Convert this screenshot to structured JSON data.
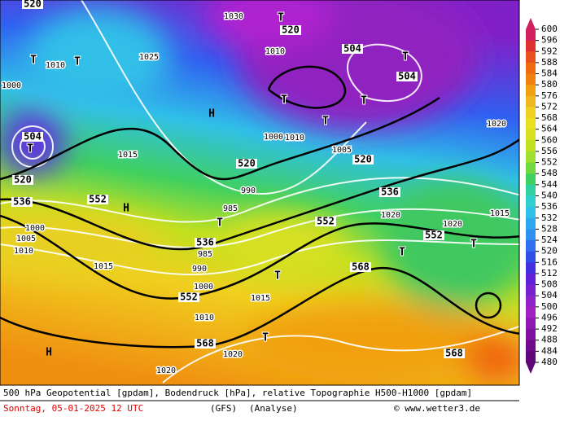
{
  "map": {
    "footer": {
      "line1": "500 hPa Geopotential [gpdam], Bodendruck [hPa], relative Topographie H500-H1000 [gpdam]",
      "date": "Sonntag, 05-01-2025  12 UTC",
      "model": "(GFS)",
      "run": "(Analyse)",
      "credit": "© www.wetter3.de"
    },
    "colorbar": {
      "labels": [
        600,
        596,
        592,
        588,
        584,
        580,
        576,
        572,
        568,
        564,
        560,
        556,
        552,
        548,
        544,
        540,
        536,
        532,
        528,
        524,
        520,
        516,
        512,
        508,
        504,
        500,
        496,
        492,
        488,
        484,
        480
      ],
      "colors": [
        "#d02060",
        "#e03030",
        "#e85020",
        "#f06a10",
        "#f08010",
        "#f0a010",
        "#f0b820",
        "#f0d020",
        "#e8e020",
        "#d8e020",
        "#c0e020",
        "#a0e030",
        "#70d840",
        "#40d060",
        "#30d0a0",
        "#30d0d0",
        "#30c0e8",
        "#30a8f0",
        "#3090f0",
        "#3070f0",
        "#3050e8",
        "#4030e0",
        "#6020d8",
        "#7820d0",
        "#9020c8",
        "#a020c0",
        "#9018b0",
        "#80109e",
        "#700c8c",
        "#600878"
      ]
    },
    "geopotential_labels": [
      "520",
      "520",
      "520",
      "520",
      "520",
      "504",
      "504",
      "504",
      "536",
      "536",
      "536",
      "552",
      "552",
      "552",
      "552",
      "568",
      "568",
      "568"
    ],
    "pressure_labels": [
      "1010",
      "1015",
      "1000",
      "1005",
      "1015",
      "1020",
      "1020",
      "1025",
      "1030",
      "1010",
      "1000",
      "1010",
      "1005",
      "1020",
      "1020",
      "1020",
      "1015",
      "1015",
      "1010",
      "1000",
      "990",
      "985",
      "990",
      "985",
      "1010",
      "1000"
    ],
    "highs": [
      "H",
      "H",
      "H"
    ],
    "lows": [
      "T",
      "T",
      "T",
      "T",
      "T",
      "T",
      "T",
      "T",
      "T",
      "T",
      "T",
      "T",
      "T"
    ]
  }
}
